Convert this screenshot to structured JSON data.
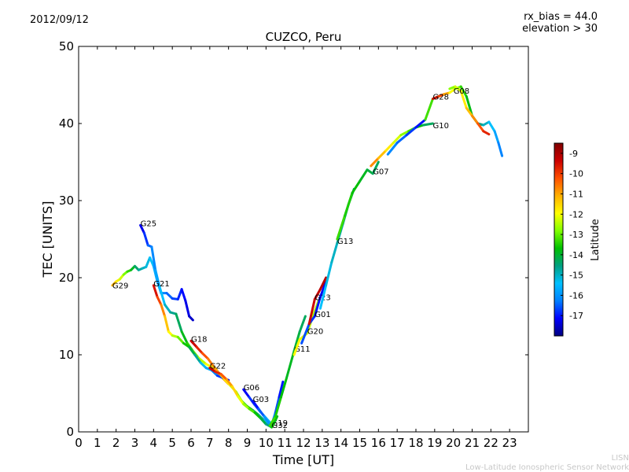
{
  "header": {
    "date": "2012/09/12",
    "bias_note": "rx_bias = 44.0",
    "elevation_note": "elevation > 30"
  },
  "footer": {
    "org_short": "LISN",
    "org_full": "Low-Latitude Ionospheric Sensor Network"
  },
  "chart_data": {
    "type": "scatter",
    "title": "CUZCO, Peru",
    "xlabel": "Time [UT]",
    "ylabel": "TEC [UNITS]",
    "xlim": [
      0,
      24
    ],
    "ylim": [
      0,
      50
    ],
    "xticks": [
      "0",
      "1",
      "2",
      "3",
      "4",
      "5",
      "6",
      "7",
      "8",
      "9",
      "10",
      "11",
      "12",
      "13",
      "14",
      "15",
      "16",
      "17",
      "18",
      "19",
      "20",
      "21",
      "22",
      "23"
    ],
    "yticks": [
      "0",
      "10",
      "20",
      "30",
      "40",
      "50"
    ],
    "colorbar": {
      "label": "Latitude",
      "range": [
        -18,
        -8.5
      ],
      "ticks": [
        "-9",
        "-10",
        "-11",
        "-12",
        "-13",
        "-14",
        "-15",
        "-16",
        "-17"
      ],
      "colors": [
        "#000080",
        "#0000ff",
        "#0080ff",
        "#00c0ff",
        "#00a080",
        "#00c000",
        "#80ff00",
        "#ffff00",
        "#ffb000",
        "#ff5000",
        "#cc0000",
        "#800000"
      ]
    },
    "series": [
      {
        "name": "G29",
        "label_at": [
          1.8,
          18.7
        ],
        "points": [
          [
            1.8,
            19.0,
            -10.8
          ],
          [
            2.0,
            19.5,
            -11.5
          ],
          [
            2.2,
            19.8,
            -12
          ],
          [
            2.4,
            20.4,
            -12.6
          ],
          [
            2.6,
            20.8,
            -13.1
          ],
          [
            2.8,
            21.0,
            -13.6
          ],
          [
            3.0,
            21.5,
            -14.2
          ],
          [
            3.2,
            21.0,
            -14.6
          ],
          [
            3.4,
            21.2,
            -14.9
          ],
          [
            3.6,
            21.4,
            -15.1
          ],
          [
            3.8,
            22.6,
            -15.3
          ],
          [
            4.0,
            21.5,
            -15.5
          ],
          [
            4.2,
            19.5,
            -15.8
          ],
          [
            4.4,
            18.0,
            -16.1
          ],
          [
            4.7,
            18.0,
            -16.3
          ],
          [
            5.0,
            17.3,
            -16.6
          ],
          [
            5.3,
            17.2,
            -16.8
          ],
          [
            5.5,
            18.5,
            -17
          ],
          [
            5.7,
            17.0,
            -17.2
          ],
          [
            5.9,
            15.0,
            -17.4
          ],
          [
            6.1,
            14.5,
            -17.6
          ]
        ]
      },
      {
        "name": "G25",
        "label_at": [
          3.3,
          26.8
        ],
        "points": [
          [
            3.3,
            26.8,
            -17.5
          ],
          [
            3.5,
            25.8,
            -17
          ],
          [
            3.7,
            24.2,
            -16.6
          ],
          [
            3.9,
            24.0,
            -16.3
          ],
          [
            4.1,
            21.0,
            -16
          ],
          [
            4.3,
            19.0,
            -15.6
          ],
          [
            4.6,
            16.5,
            -15.2
          ],
          [
            4.9,
            15.5,
            -14.8
          ],
          [
            5.2,
            15.3,
            -14.5
          ],
          [
            5.5,
            13.0,
            -14.1
          ],
          [
            5.8,
            11.5,
            -13.6
          ],
          [
            6.1,
            10.5,
            -13.2
          ],
          [
            6.4,
            9.6,
            -12.7
          ],
          [
            6.8,
            8.8,
            -12.2
          ],
          [
            7.2,
            8.3,
            -11.7
          ],
          [
            7.6,
            7.2,
            -11.1
          ],
          [
            8.0,
            6.2,
            -10.5
          ]
        ]
      },
      {
        "name": "G21",
        "label_at": [
          4.0,
          19.0
        ],
        "points": [
          [
            4.0,
            19.0,
            -9.3
          ],
          [
            4.2,
            17.5,
            -9.8
          ],
          [
            4.4,
            16.5,
            -10.4
          ],
          [
            4.6,
            15.0,
            -11
          ],
          [
            4.8,
            13.0,
            -11.6
          ],
          [
            5.0,
            12.5,
            -12.2
          ],
          [
            5.3,
            12.3,
            -12.7
          ],
          [
            5.6,
            11.5,
            -13.3
          ],
          [
            5.9,
            11.0,
            -13.9
          ],
          [
            6.2,
            10.0,
            -14.4
          ],
          [
            6.5,
            9.0,
            -15
          ],
          [
            6.8,
            8.3,
            -15.5
          ],
          [
            7.1,
            8.0,
            -16
          ],
          [
            7.4,
            7.3,
            -16.5
          ],
          [
            7.7,
            7.0,
            -17
          ],
          [
            8.0,
            6.7,
            -17.4
          ]
        ]
      },
      {
        "name": "G18",
        "label_at": [
          6.0,
          11.8
        ],
        "points": [
          [
            6.0,
            11.8,
            -9.2
          ],
          [
            6.3,
            11.0,
            -9.5
          ],
          [
            6.6,
            10.2,
            -10
          ],
          [
            6.9,
            9.5,
            -10.4
          ],
          [
            7.2,
            8.5,
            -10.8
          ],
          [
            7.5,
            7.6,
            -11.2
          ],
          [
            7.8,
            6.8,
            -11.6
          ],
          [
            8.1,
            6.0,
            -12
          ],
          [
            8.4,
            5.2,
            -12.5
          ],
          [
            8.7,
            4.0,
            -13
          ],
          [
            9.0,
            3.3,
            -13.5
          ],
          [
            9.3,
            2.8,
            -14
          ],
          [
            9.6,
            2.2,
            -14.5
          ],
          [
            9.9,
            1.5,
            -15
          ],
          [
            10.2,
            0.8,
            -15.5
          ]
        ]
      },
      {
        "name": "G22",
        "label_at": [
          7.0,
          8.3
        ],
        "points": [
          [
            7.0,
            8.3,
            -9.2
          ],
          [
            7.3,
            7.8,
            -9.5
          ],
          [
            7.6,
            7.5,
            -10
          ],
          [
            7.9,
            6.8,
            -10.6
          ],
          [
            8.2,
            5.9,
            -11.2
          ],
          [
            8.5,
            4.6,
            -11.8
          ],
          [
            8.8,
            3.6,
            -12.4
          ],
          [
            9.1,
            3.0,
            -12.9
          ],
          [
            9.4,
            2.5,
            -13.4
          ],
          [
            9.7,
            1.8,
            -13.9
          ],
          [
            10.0,
            1.0,
            -14.4
          ],
          [
            10.3,
            0.6,
            -14.8
          ]
        ]
      },
      {
        "name": "G06",
        "label_at": [
          8.8,
          5.5
        ],
        "points": [
          [
            8.8,
            5.5,
            -17.4
          ],
          [
            9.1,
            4.5,
            -17
          ],
          [
            9.4,
            3.5,
            -16.6
          ],
          [
            9.7,
            2.6,
            -16.2
          ],
          [
            10.0,
            1.8,
            -15.8
          ],
          [
            10.3,
            1.0,
            -15.3
          ]
        ]
      },
      {
        "name": "G03",
        "label_at": [
          9.3,
          4.0
        ],
        "points": [
          [
            9.3,
            4.0,
            -17.3
          ],
          [
            9.6,
            3.0,
            -16.8
          ],
          [
            9.9,
            2.0,
            -16.3
          ],
          [
            10.2,
            1.0,
            -15.7
          ]
        ]
      },
      {
        "name": "G19",
        "label_at": [
          10.3,
          0.9
        ],
        "points": [
          [
            10.3,
            0.9,
            -16
          ],
          [
            10.5,
            2.5,
            -16.4
          ],
          [
            10.7,
            4.5,
            -16.8
          ],
          [
            10.9,
            6.5,
            -17.2
          ]
        ]
      },
      {
        "name": "G32",
        "label_at": [
          10.3,
          0.6
        ],
        "points": [
          [
            10.3,
            0.6,
            -13.5
          ],
          [
            10.4,
            1.0,
            -13.7
          ],
          [
            10.6,
            2.0,
            -14
          ]
        ]
      },
      {
        "name": "G11",
        "label_at": [
          11.5,
          10.5
        ],
        "points": [
          [
            10.2,
            0.8,
            -13.2
          ],
          [
            10.5,
            2.0,
            -13.4
          ],
          [
            10.8,
            4.5,
            -13.6
          ],
          [
            11.1,
            7.0,
            -13.8
          ],
          [
            11.5,
            10.5,
            -14
          ],
          [
            11.8,
            13.0,
            -14.2
          ],
          [
            12.1,
            15.0,
            -14.4
          ]
        ]
      },
      {
        "name": "G20",
        "label_at": [
          12.2,
          12.8
        ],
        "points": [
          [
            11.5,
            10.0,
            -11.8
          ],
          [
            11.8,
            12.0,
            -12
          ],
          [
            12.2,
            12.8,
            -12.2
          ],
          [
            12.5,
            15.0,
            -12.4
          ],
          [
            12.8,
            17.0,
            -12.6
          ]
        ]
      },
      {
        "name": "G01",
        "label_at": [
          12.6,
          15.0
        ],
        "points": [
          [
            11.9,
            11.5,
            -16.5
          ],
          [
            12.3,
            14.0,
            -16.7
          ],
          [
            12.6,
            15.0,
            -16.9
          ],
          [
            12.9,
            17.5,
            -17.1
          ],
          [
            13.2,
            19.5,
            -17.3
          ]
        ]
      },
      {
        "name": "G23",
        "label_at": [
          12.6,
          17.2
        ],
        "points": [
          [
            12.3,
            14.0,
            -9.5
          ],
          [
            12.6,
            17.2,
            -9.3
          ],
          [
            12.9,
            18.5,
            -9.2
          ],
          [
            13.2,
            20.0,
            -9.1
          ]
        ]
      },
      {
        "name": "G13",
        "label_at": [
          13.8,
          24.5
        ],
        "points": [
          [
            12.9,
            16.0,
            -15.5
          ],
          [
            13.2,
            19.0,
            -15.3
          ],
          [
            13.5,
            22.0,
            -15.1
          ],
          [
            13.8,
            24.5,
            -14.9
          ],
          [
            14.1,
            27.0,
            -14.7
          ],
          [
            14.4,
            29.5,
            -14.5
          ],
          [
            14.7,
            31.5,
            -14.3
          ]
        ]
      },
      {
        "name": "G07",
        "label_at": [
          15.7,
          33.5
        ],
        "points": [
          [
            13.8,
            25.0,
            -13.2
          ],
          [
            14.2,
            28.0,
            -13.4
          ],
          [
            14.6,
            31.0,
            -13.6
          ],
          [
            15.0,
            32.5,
            -13.8
          ],
          [
            15.4,
            34.0,
            -14
          ],
          [
            15.7,
            33.5,
            -14.2
          ],
          [
            16.0,
            35.0,
            -14.4
          ]
        ]
      },
      {
        "name": "G10",
        "label_at": [
          18.9,
          39.5
        ],
        "points": [
          [
            15.6,
            34.5,
            -10.5
          ],
          [
            16.0,
            35.5,
            -11
          ],
          [
            16.4,
            36.5,
            -11.5
          ],
          [
            16.8,
            37.5,
            -12
          ],
          [
            17.2,
            38.5,
            -12.5
          ],
          [
            17.6,
            39.0,
            -13
          ],
          [
            18.0,
            39.5,
            -13.5
          ],
          [
            18.4,
            39.8,
            -14
          ],
          [
            18.9,
            40.0,
            -14.6
          ]
        ]
      },
      {
        "name": "G28",
        "label_at": [
          18.9,
          43.2
        ],
        "points": [
          [
            16.5,
            36.0,
            -16
          ],
          [
            17.0,
            37.5,
            -16.3
          ],
          [
            17.5,
            38.5,
            -16.6
          ],
          [
            18.0,
            39.5,
            -16.9
          ],
          [
            18.5,
            40.5,
            -17.2
          ],
          [
            18.9,
            43.2,
            -9.3
          ],
          [
            19.2,
            43.5,
            -9.8
          ],
          [
            19.5,
            43.8,
            -10.5
          ],
          [
            19.8,
            44.0,
            -11.5
          ],
          [
            20.1,
            44.5,
            -12.5
          ],
          [
            20.4,
            44.8,
            -13.2
          ],
          [
            20.7,
            43.5,
            -13.6
          ],
          [
            21.0,
            41.0,
            -14
          ],
          [
            21.3,
            40.0,
            -14.4
          ],
          [
            21.6,
            39.8,
            -14.8
          ],
          [
            21.9,
            40.2,
            -15.2
          ],
          [
            22.2,
            39.0,
            -15.6
          ],
          [
            22.4,
            37.5,
            -16
          ],
          [
            22.6,
            35.8,
            -16.4
          ]
        ]
      },
      {
        "name": "G08",
        "label_at": [
          20.0,
          44.0
        ],
        "points": [
          [
            19.8,
            44.5,
            -13
          ],
          [
            20.1,
            44.8,
            -12.5
          ],
          [
            20.4,
            44.2,
            -12
          ],
          [
            20.7,
            42.0,
            -11.5
          ],
          [
            21.0,
            41.0,
            -11
          ],
          [
            21.3,
            40.0,
            -10.5
          ],
          [
            21.6,
            39.0,
            -10
          ],
          [
            21.9,
            38.6,
            -9.5
          ]
        ]
      }
    ]
  }
}
